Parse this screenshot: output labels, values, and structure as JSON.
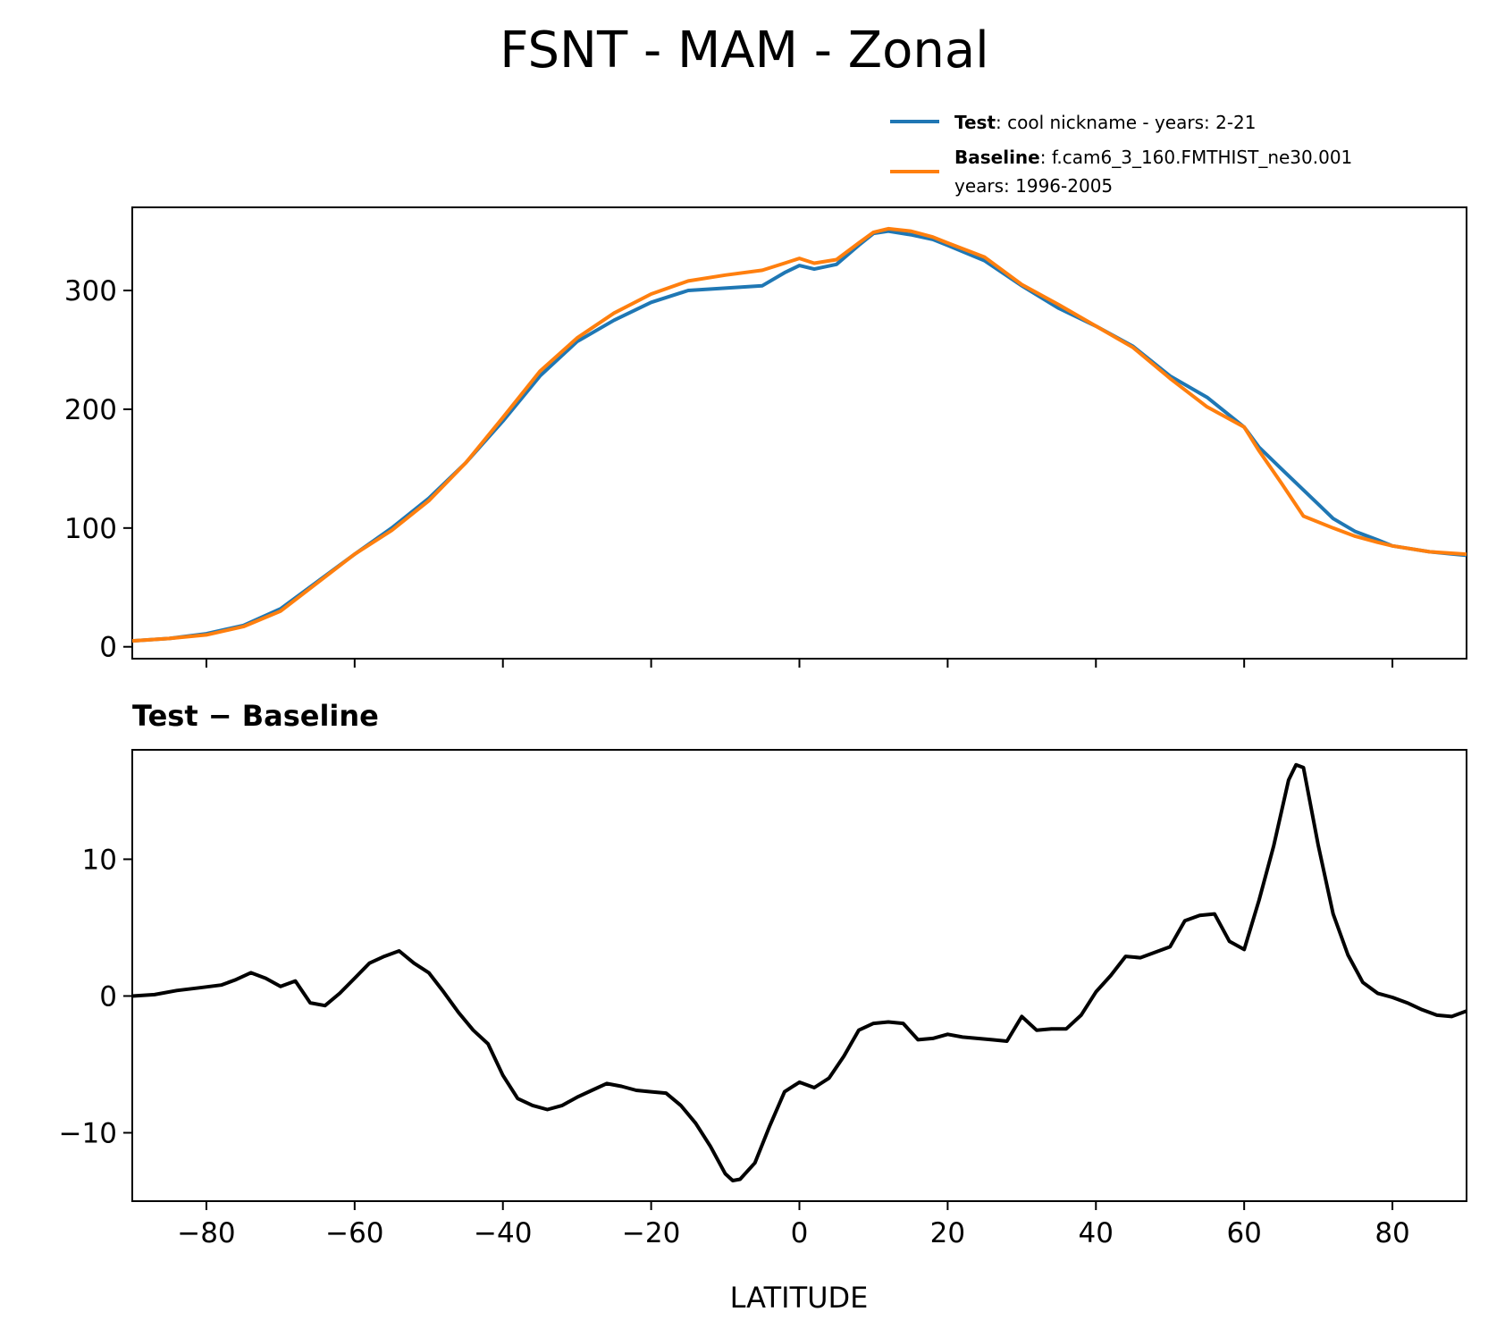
{
  "title": "FSNT - MAM - Zonal",
  "colors": {
    "test": "#1f77b4",
    "baseline": "#ff7f0e",
    "difference": "#000000"
  },
  "legend": {
    "placement": "top-right, above top panel",
    "test": {
      "name": "Test",
      "desc": ": cool nickname - years: 2-21"
    },
    "baseline": {
      "name": "Baseline",
      "desc": ": f.cam6_3_160.FMTHIST_ne30.001",
      "desc2": "years: 1996-2005"
    }
  },
  "chart_data": [
    {
      "type": "line",
      "panel": "top",
      "xlim": [
        -90,
        90
      ],
      "ylim": [
        -10,
        370
      ],
      "yticks": [
        0,
        100,
        200,
        300
      ],
      "xticks": [
        -80,
        -60,
        -40,
        -20,
        0,
        20,
        40,
        60,
        80
      ],
      "x_tick_labels_shown": false,
      "grid": false,
      "series": [
        {
          "name": "Test",
          "color": "#1f77b4",
          "x": [
            -90,
            -85,
            -80,
            -75,
            -70,
            -65,
            -60,
            -55,
            -50,
            -45,
            -40,
            -35,
            -30,
            -25,
            -20,
            -15,
            -10,
            -5,
            -2,
            0,
            2,
            5,
            8,
            10,
            12,
            15,
            18,
            20,
            25,
            30,
            35,
            40,
            45,
            50,
            55,
            60,
            62,
            65,
            70,
            72,
            75,
            78,
            80,
            85,
            90
          ],
          "y": [
            5,
            7,
            11,
            18,
            32,
            55,
            78,
            100,
            125,
            155,
            190,
            228,
            257,
            275,
            290,
            300,
            302,
            304,
            315,
            321,
            318,
            322,
            338,
            348,
            350,
            347,
            343,
            338,
            325,
            304,
            285,
            270,
            253,
            228,
            210,
            185,
            168,
            150,
            120,
            108,
            97,
            90,
            85,
            80,
            77
          ]
        },
        {
          "name": "Baseline",
          "color": "#ff7f0e",
          "x": [
            -90,
            -85,
            -80,
            -75,
            -70,
            -65,
            -60,
            -55,
            -50,
            -45,
            -40,
            -35,
            -30,
            -25,
            -20,
            -15,
            -10,
            -5,
            -2,
            0,
            2,
            5,
            8,
            10,
            12,
            15,
            18,
            20,
            25,
            30,
            35,
            40,
            45,
            50,
            55,
            60,
            62,
            65,
            68,
            72,
            75,
            78,
            80,
            85,
            90
          ],
          "y": [
            5,
            7,
            10,
            17,
            30,
            54,
            78,
            98,
            123,
            155,
            193,
            232,
            260,
            281,
            297,
            308,
            313,
            317,
            323,
            327,
            323,
            326,
            340,
            349,
            352,
            350,
            345,
            340,
            328,
            305,
            288,
            270,
            252,
            226,
            202,
            185,
            165,
            138,
            110,
            100,
            93,
            88,
            85,
            80,
            78
          ]
        }
      ]
    },
    {
      "type": "line",
      "panel": "bottom",
      "title": "Test − Baseline",
      "xlabel": "LATITUDE",
      "xlim": [
        -90,
        90
      ],
      "ylim": [
        -15,
        18
      ],
      "yticks": [
        -10,
        0,
        10
      ],
      "yticklabels": [
        "−10",
        "0",
        "10"
      ],
      "xticks": [
        -80,
        -60,
        -40,
        -20,
        0,
        20,
        40,
        60,
        80
      ],
      "xticklabels": [
        "−80",
        "−60",
        "−40",
        "−20",
        "0",
        "20",
        "40",
        "60",
        "80"
      ],
      "grid": false,
      "series": [
        {
          "color": "#000000",
          "x": [
            -90,
            -87,
            -84,
            -81,
            -78,
            -76,
            -74,
            -72,
            -70,
            -68,
            -66,
            -64,
            -62,
            -60,
            -58,
            -56,
            -54,
            -52,
            -50,
            -48,
            -46,
            -44,
            -42,
            -40,
            -38,
            -36,
            -34,
            -32,
            -30,
            -28,
            -26,
            -24,
            -22,
            -20,
            -18,
            -16,
            -14,
            -12,
            -10,
            -9,
            -8,
            -6,
            -4,
            -2,
            0,
            2,
            4,
            6,
            8,
            10,
            12,
            14,
            16,
            18,
            20,
            22,
            24,
            26,
            28,
            30,
            32,
            34,
            36,
            38,
            40,
            42,
            44,
            46,
            48,
            50,
            52,
            54,
            56,
            58,
            60,
            62,
            64,
            66,
            67,
            68,
            70,
            72,
            74,
            76,
            78,
            80,
            82,
            84,
            86,
            88,
            90
          ],
          "y": [
            0,
            0.1,
            0.4,
            0.6,
            0.8,
            1.2,
            1.7,
            1.3,
            0.7,
            1.1,
            -0.5,
            -0.7,
            0.2,
            1.3,
            2.4,
            2.9,
            3.3,
            2.4,
            1.7,
            0.3,
            -1.2,
            -2.5,
            -3.5,
            -5.8,
            -7.5,
            -8.0,
            -8.3,
            -8.0,
            -7.4,
            -6.9,
            -6.4,
            -6.6,
            -6.9,
            -7.0,
            -7.1,
            -8.0,
            -9.3,
            -11.0,
            -13.0,
            -13.5,
            -13.4,
            -12.2,
            -9.5,
            -7.0,
            -6.3,
            -6.7,
            -6.0,
            -4.4,
            -2.5,
            -2.0,
            -1.9,
            -2.0,
            -3.2,
            -3.1,
            -2.8,
            -3.0,
            -3.1,
            -3.2,
            -3.3,
            -1.5,
            -2.5,
            -2.4,
            -2.4,
            -1.4,
            0.3,
            1.5,
            2.9,
            2.8,
            3.2,
            3.6,
            5.5,
            5.9,
            6.0,
            4.0,
            3.4,
            7.0,
            11.0,
            15.8,
            16.9,
            16.7,
            11.0,
            6.0,
            3.0,
            1.0,
            0.2,
            -0.1,
            -0.5,
            -1.0,
            -1.4,
            -1.5,
            -1.1
          ]
        }
      ]
    }
  ]
}
